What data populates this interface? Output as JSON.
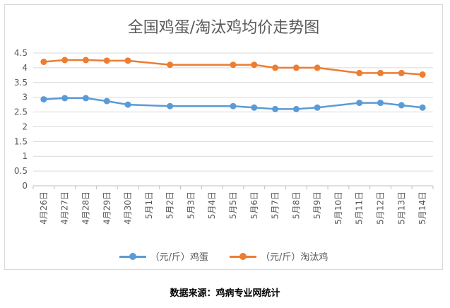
{
  "chart_data": {
    "type": "line",
    "title": "全国鸡蛋/淘汰鸡均价走势图",
    "categories": [
      "4月26日",
      "4月27日",
      "4月28日",
      "4月29日",
      "4月30日",
      "5月1日",
      "5月2日",
      "5月3日",
      "5月4日",
      "5月5日",
      "5月6日",
      "5月7日",
      "5月8日",
      "5月9日",
      "5月10日",
      "5月11日",
      "5月12日",
      "5月13日",
      "5月14日"
    ],
    "yticks": [
      "0",
      "0.5",
      "1",
      "1.5",
      "2",
      "2.5",
      "3",
      "3.5",
      "4",
      "4.5"
    ],
    "ylim": [
      0,
      4.5
    ],
    "grid": true,
    "legend_position": "bottom",
    "series": [
      {
        "name": "（元/斤）鸡蛋",
        "color": "#5b9bd5",
        "values": [
          2.93,
          2.97,
          2.97,
          2.87,
          2.75,
          null,
          2.7,
          null,
          null,
          2.7,
          2.65,
          2.6,
          2.6,
          2.65,
          null,
          2.81,
          2.81,
          2.73,
          2.65
        ]
      },
      {
        "name": "（元/斤）淘汰鸡",
        "color": "#ed7d31",
        "values": [
          4.2,
          4.26,
          4.26,
          4.24,
          4.24,
          null,
          4.1,
          null,
          null,
          4.1,
          4.1,
          4.0,
          4.0,
          4.0,
          null,
          3.82,
          3.82,
          3.82,
          3.77
        ]
      }
    ]
  },
  "source_text": "数据来源：鸡病专业网统计"
}
